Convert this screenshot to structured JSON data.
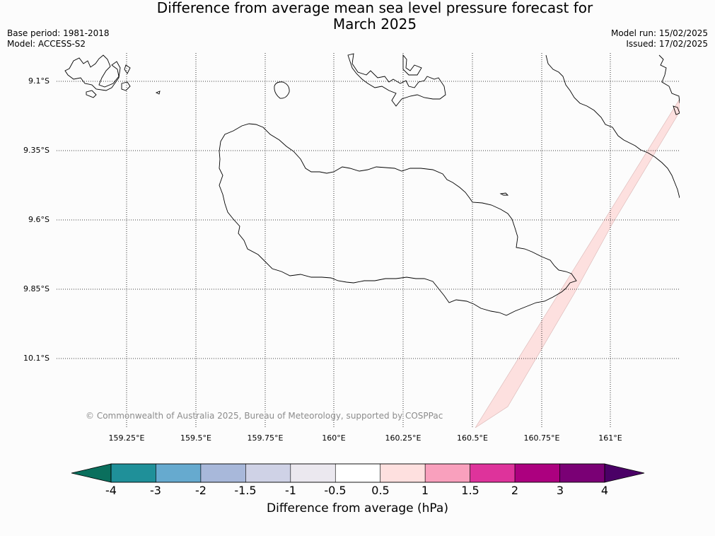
{
  "title": {
    "line1": "Difference from average mean sea level pressure forecast for",
    "line2": "March 2025"
  },
  "meta": {
    "base_period": "Base period: 1981-2018",
    "model": "Model: ACCESS-S2",
    "model_run": "Model run: 15/02/2025",
    "issued": "Issued: 17/02/2025"
  },
  "latitude_labels": [
    "9.1°S",
    "9.35°S",
    "9.6°S",
    "9.85°S",
    "10.1°S"
  ],
  "longitude_labels": [
    "159.25°E",
    "159.5°E",
    "159.75°E",
    "160°E",
    "160.25°E",
    "160.5°E",
    "160.75°E",
    "161°E"
  ],
  "copyright": "© Commonwealth of Australia 2025, Bureau of Meteorology, supported by COSPPac",
  "colorbar": {
    "ticks": [
      "-4",
      "-3",
      "-2",
      "-1.5",
      "-1",
      "-0.5",
      "0.5",
      "1",
      "1.5",
      "2",
      "3",
      "4"
    ],
    "colors": [
      "#0a6f5d",
      "#1f9099",
      "#66aacf",
      "#a8b8da",
      "#cfd2e6",
      "#ebe8ef",
      "#ffffff",
      "#fee0df",
      "#f9a0bd",
      "#de339b",
      "#ac007f",
      "#7a0075",
      "#4a0066"
    ],
    "label": "Difference from average (hPa)"
  },
  "anomaly_fill_color": "#fde0df"
}
